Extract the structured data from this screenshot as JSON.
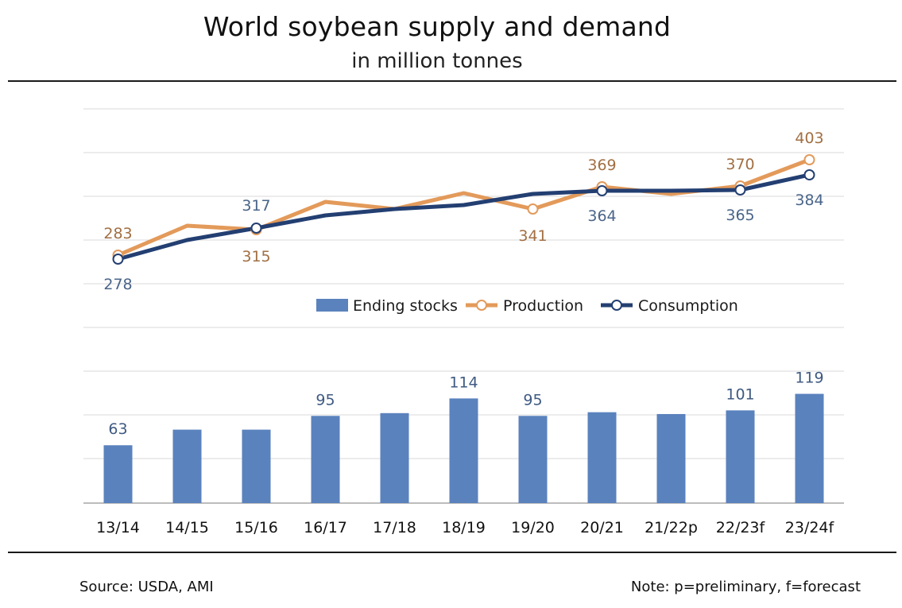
{
  "title": "World soybean supply and demand",
  "subtitle": "in million tonnes",
  "source": "Source: USDA, AMI",
  "note": "Note: p=preliminary, f=forecast",
  "colors": {
    "ending_stocks": "#5a82bd",
    "production": "#e39a5a",
    "consumption": "#233f72",
    "production_label": "#a26f43",
    "consumption_label": "#4a6589",
    "stocks_label": "#3f5a82",
    "grid": "#d9d9d9"
  },
  "chart_data": {
    "type": "bar+line",
    "categories": [
      "13/14",
      "14/15",
      "15/16",
      "16/17",
      "17/18",
      "18/19",
      "19/20",
      "20/21",
      "21/22p",
      "22/23f",
      "23/24f"
    ],
    "legend_position": "center",
    "grid": true,
    "series": [
      {
        "name": "Ending stocks",
        "type": "bar",
        "values": [
          63,
          80,
          80,
          95,
          98,
          114,
          95,
          99,
          97,
          101,
          119
        ],
        "labels": [
          "63",
          "",
          "",
          "95",
          "",
          "114",
          "95",
          "",
          "",
          "101",
          "119"
        ]
      },
      {
        "name": "Production",
        "type": "line",
        "values": [
          283,
          320,
          315,
          350,
          341,
          361,
          341,
          369,
          360,
          370,
          403
        ],
        "labels": [
          "283",
          "",
          "315",
          "",
          "",
          "",
          "341",
          "369",
          "",
          "370",
          "403"
        ]
      },
      {
        "name": "Consumption",
        "type": "line",
        "values": [
          278,
          302,
          317,
          333,
          341,
          346,
          360,
          364,
          364,
          365,
          384
        ],
        "labels": [
          "278",
          "",
          "317",
          "",
          "",
          "",
          "",
          "364",
          "",
          "365",
          "384"
        ]
      }
    ]
  }
}
